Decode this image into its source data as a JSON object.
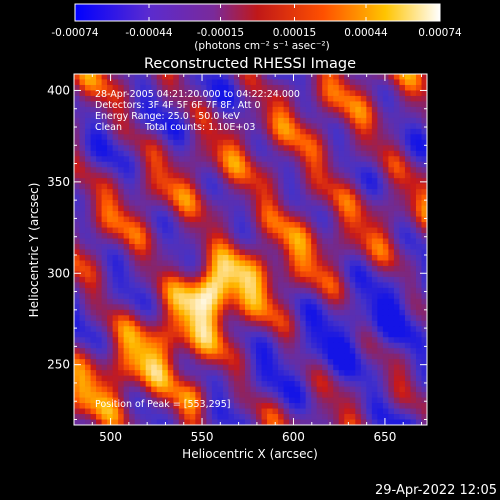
{
  "colorbar": {
    "tick_labels": [
      "-0.00074",
      "-0.00044",
      "-0.00015",
      "0.00015",
      "0.00044",
      "0.00074"
    ],
    "tick_values": [
      -0.00074,
      -0.00044,
      -0.00015,
      0.00015,
      0.00044,
      0.00074
    ],
    "range": [
      -0.00074,
      0.00074
    ],
    "units_label": "(photons cm⁻² s⁻¹ asec⁻²)",
    "colormap": "rhessi (blue-purple-red-orange-yellow-white)"
  },
  "chart_data": {
    "type": "heatmap",
    "title": "Reconstructed RHESSI Image",
    "xlabel": "Heliocentric X (arcsec)",
    "ylabel": "Heliocentric Y (arcsec)",
    "xlim": [
      480,
      673
    ],
    "ylim": [
      217,
      409
    ],
    "x_ticks": [
      500,
      550,
      600,
      650
    ],
    "y_ticks": [
      250,
      300,
      350,
      400
    ],
    "annotations": [
      "28-Apr-2005 04:21:20.000 to 04:22:24.000",
      "Detectors: 3F 4F 5F 6F 7F 8F, Att 0",
      "Energy Range: 25.0 - 50.0 keV",
      "Clean",
      "Total counts: 1.10E+03"
    ],
    "peak_label": "Position of Peak = [553,295]",
    "peak": [
      553,
      295
    ]
  },
  "footer": {
    "timestamp": "29-Apr-2022 12:05"
  },
  "colors": {
    "background": "#000000",
    "foreground": "#ffffff",
    "stops": [
      "#0000ff",
      "#6a2eb8",
      "#9b2a6e",
      "#d0201a",
      "#ff6a00",
      "#ffc000",
      "#ffffff"
    ]
  }
}
